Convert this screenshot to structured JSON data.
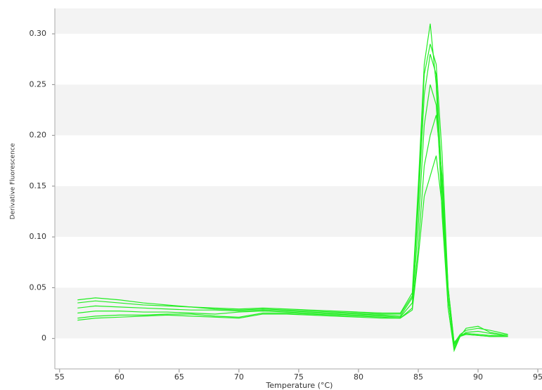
{
  "chart_data": {
    "type": "line",
    "xlabel": "Temperature (°C)",
    "ylabel": "Derivative Fluorescence",
    "x": [
      56.5,
      58,
      60,
      62,
      64,
      66,
      68,
      70,
      72,
      74,
      76,
      78,
      80,
      82,
      83.5,
      84.5,
      85,
      85.5,
      86,
      86.5,
      87,
      87.5,
      88,
      88.5,
      89,
      90,
      91,
      92.5
    ],
    "series": [
      {
        "color": "#22ee22",
        "values": [
          0.035,
          0.037,
          0.035,
          0.033,
          0.032,
          0.031,
          0.03,
          0.029,
          0.03,
          0.029,
          0.028,
          0.027,
          0.026,
          0.025,
          0.025,
          0.045,
          0.15,
          0.27,
          0.31,
          0.25,
          0.12,
          0.03,
          -0.012,
          0.002,
          0.004,
          0.003,
          0.002,
          0.002
        ]
      },
      {
        "color": "#22ee22",
        "values": [
          0.03,
          0.032,
          0.031,
          0.03,
          0.029,
          0.028,
          0.028,
          0.027,
          0.028,
          0.027,
          0.026,
          0.025,
          0.024,
          0.023,
          0.022,
          0.04,
          0.13,
          0.24,
          0.28,
          0.26,
          0.15,
          0.04,
          -0.008,
          0.003,
          0.005,
          0.004,
          0.003,
          0.002
        ]
      },
      {
        "color": "#22ee22",
        "values": [
          0.025,
          0.027,
          0.027,
          0.026,
          0.026,
          0.025,
          0.024,
          0.026,
          0.027,
          0.026,
          0.025,
          0.024,
          0.023,
          0.022,
          0.021,
          0.035,
          0.11,
          0.21,
          0.25,
          0.23,
          0.14,
          0.03,
          -0.01,
          0.002,
          0.01,
          0.012,
          0.006,
          0.003
        ]
      },
      {
        "color": "#22ee22",
        "values": [
          0.02,
          0.022,
          0.023,
          0.023,
          0.024,
          0.024,
          0.022,
          0.021,
          0.025,
          0.025,
          0.024,
          0.023,
          0.022,
          0.021,
          0.02,
          0.03,
          0.09,
          0.17,
          0.2,
          0.22,
          0.16,
          0.05,
          -0.005,
          0.004,
          0.008,
          0.01,
          0.008,
          0.004
        ]
      },
      {
        "color": "#22ee22",
        "values": [
          0.018,
          0.02,
          0.021,
          0.022,
          0.023,
          0.022,
          0.021,
          0.02,
          0.024,
          0.024,
          0.023,
          0.022,
          0.021,
          0.02,
          0.02,
          0.028,
          0.08,
          0.14,
          0.16,
          0.18,
          0.13,
          0.04,
          -0.006,
          0.002,
          0.006,
          0.007,
          0.005,
          0.002
        ]
      },
      {
        "color": "#22ee22",
        "values": [
          0.038,
          0.04,
          0.038,
          0.035,
          0.033,
          0.031,
          0.029,
          0.028,
          0.029,
          0.028,
          0.027,
          0.026,
          0.025,
          0.024,
          0.024,
          0.042,
          0.14,
          0.26,
          0.29,
          0.27,
          0.18,
          0.05,
          -0.004,
          0.003,
          0.004,
          0.003,
          0.002,
          0.002
        ]
      }
    ],
    "xlim": [
      54.6,
      95.35
    ],
    "ylim": [
      -0.03,
      0.325
    ],
    "xticks": [
      55,
      60,
      65,
      70,
      75,
      80,
      85,
      90,
      95
    ],
    "yticks": [
      0,
      0.05,
      0.1,
      0.15,
      0.2,
      0.25,
      0.3
    ],
    "yticks_labels": [
      "0",
      "0.05",
      "0.10",
      "0.15",
      "0.20",
      "0.25",
      "0.30"
    ],
    "grid": "bands"
  }
}
